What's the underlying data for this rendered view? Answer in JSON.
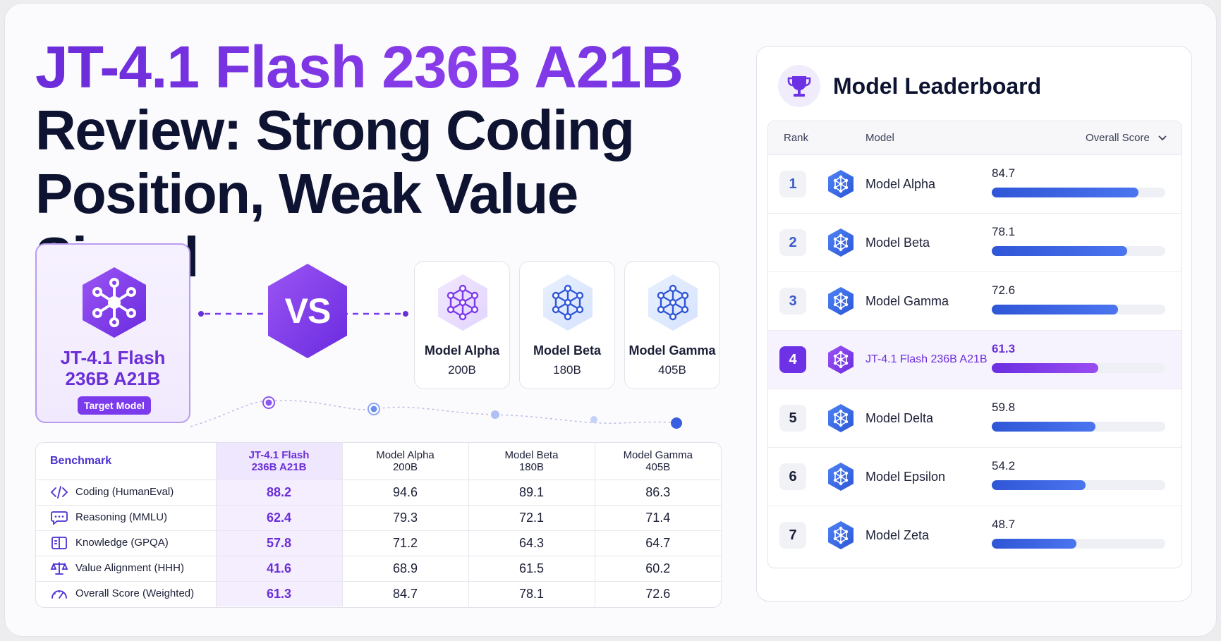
{
  "title": {
    "line1": "JT-4.1 Flash 236B A21B",
    "line2": "Review: Strong Coding",
    "line3": "Position, Weak Value Signal"
  },
  "target": {
    "name_line1": "JT-4.1 Flash",
    "name_line2": "236B A21B",
    "badge": "Target Model"
  },
  "vs_label": "VS",
  "competitors": [
    {
      "name": "Model Alpha",
      "size": "200B"
    },
    {
      "name": "Model Beta",
      "size": "180B"
    },
    {
      "name": "Model Gamma",
      "size": "405B"
    }
  ],
  "benchmark_table": {
    "header_label": "Benchmark",
    "columns": [
      {
        "line1": "JT-4.1 Flash",
        "line2": "236B A21B"
      },
      {
        "line1": "Model Alpha",
        "line2": "200B"
      },
      {
        "line1": "Model Beta",
        "line2": "180B"
      },
      {
        "line1": "Model Gamma",
        "line2": "405B"
      }
    ],
    "rows": [
      {
        "label": "Coding (HumanEval)",
        "icon": "code-icon",
        "values": [
          "88.2",
          "94.6",
          "89.1",
          "86.3"
        ]
      },
      {
        "label": "Reasoning (MMLU)",
        "icon": "chat-icon",
        "values": [
          "62.4",
          "79.3",
          "72.1",
          "71.4"
        ]
      },
      {
        "label": "Knowledge (GPQA)",
        "icon": "book-icon",
        "values": [
          "57.8",
          "71.2",
          "64.3",
          "64.7"
        ]
      },
      {
        "label": "Value Alignment (HHH)",
        "icon": "scale-icon",
        "values": [
          "41.6",
          "68.9",
          "61.5",
          "60.2"
        ]
      },
      {
        "label": "Overall Score (Weighted)",
        "icon": "gauge-icon",
        "values": [
          "61.3",
          "84.7",
          "78.1",
          "72.6"
        ]
      }
    ]
  },
  "leaderboard": {
    "title": "Model Leaderboard",
    "icon": "trophy-icon",
    "col_rank": "Rank",
    "col_model": "Model",
    "col_score": "Overall Score",
    "max_score": 100,
    "entries": [
      {
        "rank": "1",
        "name": "Model Alpha",
        "score": 84.7,
        "score_text": "84.7"
      },
      {
        "rank": "2",
        "name": "Model Beta",
        "score": 78.1,
        "score_text": "78.1"
      },
      {
        "rank": "3",
        "name": "Model Gamma",
        "score": 72.6,
        "score_text": "72.6"
      },
      {
        "rank": "4",
        "name": "JT-4.1 Flash 236B A21B",
        "score": 61.3,
        "score_text": "61.3",
        "highlight": true
      },
      {
        "rank": "5",
        "name": "Model Delta",
        "score": 59.8,
        "score_text": "59.8"
      },
      {
        "rank": "6",
        "name": "Model Epsilon",
        "score": 54.2,
        "score_text": "54.2"
      },
      {
        "rank": "7",
        "name": "Model Zeta",
        "score": 48.7,
        "score_text": "48.7"
      }
    ]
  },
  "colors": {
    "accent_purple": "#7c3aed",
    "accent_blue": "#3b5cd8",
    "title_dark": "#0d1330"
  }
}
